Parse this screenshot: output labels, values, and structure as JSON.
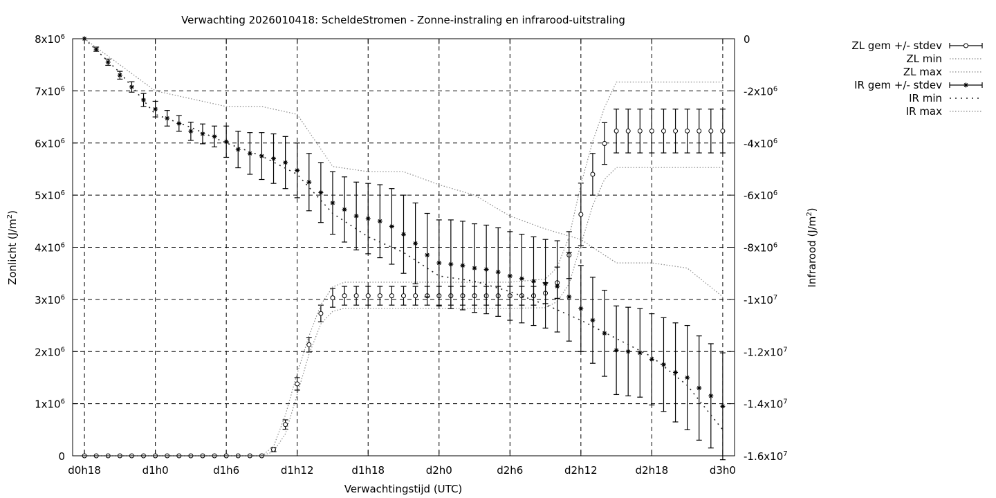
{
  "chart_data": {
    "type": "line",
    "title": "Verwachting 2026010418: ScheldeStromen - Zonne-instraling en infrarood-uitstraling",
    "xlabel": "Verwachtingstijd (UTC)",
    "ylabel_left_base": "Zonlicht (J/m",
    "ylabel_right_base": "Infrarood (J/m",
    "unit_sup": "2",
    "unit_close": ")",
    "x_range_hours": [
      -1,
      55
    ],
    "x_ticks": [
      {
        "h": 0,
        "label": "d0h18"
      },
      {
        "h": 6,
        "label": "d1h0"
      },
      {
        "h": 12,
        "label": "d1h6"
      },
      {
        "h": 18,
        "label": "d1h12"
      },
      {
        "h": 24,
        "label": "d1h18"
      },
      {
        "h": 30,
        "label": "d2h0"
      },
      {
        "h": 36,
        "label": "d2h6"
      },
      {
        "h": 42,
        "label": "d2h12"
      },
      {
        "h": 48,
        "label": "d2h18"
      },
      {
        "h": 54,
        "label": "d3h0"
      }
    ],
    "y_left_range": [
      0,
      8000000
    ],
    "y_left_ticks": [
      {
        "v": 0,
        "base": "0",
        "exp": ""
      },
      {
        "v": 1000000,
        "base": "1x10",
        "exp": "6"
      },
      {
        "v": 2000000,
        "base": "2x10",
        "exp": "6"
      },
      {
        "v": 3000000,
        "base": "3x10",
        "exp": "6"
      },
      {
        "v": 4000000,
        "base": "4x10",
        "exp": "6"
      },
      {
        "v": 5000000,
        "base": "5x10",
        "exp": "6"
      },
      {
        "v": 6000000,
        "base": "6x10",
        "exp": "6"
      },
      {
        "v": 7000000,
        "base": "7x10",
        "exp": "6"
      },
      {
        "v": 8000000,
        "base": "8x10",
        "exp": "6"
      }
    ],
    "y_right_range": [
      -16000000,
      0
    ],
    "y_right_ticks": [
      {
        "v": 0,
        "base": "0",
        "exp": ""
      },
      {
        "v": -2000000,
        "base": "-2x10",
        "exp": "6"
      },
      {
        "v": -4000000,
        "base": "-4x10",
        "exp": "6"
      },
      {
        "v": -6000000,
        "base": "-6x10",
        "exp": "6"
      },
      {
        "v": -8000000,
        "base": "-8x10",
        "exp": "6"
      },
      {
        "v": -10000000,
        "base": "-1x10",
        "exp": "7"
      },
      {
        "v": -12000000,
        "base": "-1.2x10",
        "exp": "7"
      },
      {
        "v": -14000000,
        "base": "-1.4x10",
        "exp": "7"
      },
      {
        "v": -16000000,
        "base": "-1.6x10",
        "exp": "7"
      }
    ],
    "grid": true,
    "legend_position": "top-right outside",
    "legend": [
      "ZL gem +/- stdev",
      "ZL min",
      "ZL max",
      "IR gem +/- stdev",
      "IR min",
      "IR max"
    ],
    "series": [
      {
        "name": "ZL gem +/- stdev",
        "axis": "left",
        "marker": "circle",
        "x": [
          0,
          1,
          2,
          3,
          4,
          5,
          6,
          7,
          8,
          9,
          10,
          11,
          12,
          13,
          14,
          15,
          16,
          17,
          18,
          19,
          20,
          21,
          22,
          23,
          24,
          25,
          26,
          27,
          28,
          29,
          30,
          31,
          32,
          33,
          34,
          35,
          36,
          37,
          38,
          39,
          40,
          41,
          42,
          43,
          44,
          45,
          46,
          47,
          48,
          49,
          50,
          51,
          52,
          53,
          54
        ],
        "mean": [
          0,
          0,
          0,
          0,
          0,
          0,
          0,
          0,
          0,
          0,
          0,
          0,
          0,
          0,
          0,
          0,
          120000,
          600000,
          1380000,
          2130000,
          2730000,
          3030000,
          3070000,
          3070000,
          3070000,
          3070000,
          3070000,
          3070000,
          3070000,
          3070000,
          3070000,
          3070000,
          3070000,
          3070000,
          3070000,
          3070000,
          3070000,
          3070000,
          3070000,
          3120000,
          3320000,
          3850000,
          4630000,
          5400000,
          5990000,
          6230000,
          6230000,
          6230000,
          6230000,
          6230000,
          6230000,
          6230000,
          6230000,
          6230000,
          6230000
        ],
        "stdev": [
          0,
          0,
          0,
          0,
          0,
          0,
          0,
          0,
          0,
          0,
          0,
          0,
          0,
          0,
          0,
          0,
          40000,
          90000,
          120000,
          140000,
          160000,
          180000,
          180000,
          180000,
          180000,
          180000,
          180000,
          180000,
          180000,
          180000,
          180000,
          180000,
          180000,
          180000,
          180000,
          180000,
          180000,
          180000,
          180000,
          200000,
          300000,
          450000,
          600000,
          400000,
          400000,
          420000,
          420000,
          420000,
          420000,
          420000,
          420000,
          420000,
          420000,
          420000,
          420000
        ]
      },
      {
        "name": "ZL min",
        "axis": "left",
        "x": [
          0,
          15,
          16,
          17,
          18,
          19,
          20,
          21,
          22,
          23,
          24,
          30,
          36,
          39,
          40,
          41,
          42,
          43,
          44,
          45,
          54
        ],
        "values": [
          0,
          0,
          80000,
          420000,
          1180000,
          1950000,
          2530000,
          2770000,
          2830000,
          2830000,
          2830000,
          2830000,
          2830000,
          2840000,
          2960000,
          3300000,
          4050000,
          4800000,
          5300000,
          5530000,
          5530000
        ]
      },
      {
        "name": "ZL max",
        "axis": "left",
        "x": [
          0,
          15,
          16,
          17,
          18,
          19,
          20,
          21,
          22,
          23,
          24,
          30,
          36,
          39,
          40,
          41,
          42,
          43,
          44,
          45,
          54
        ],
        "values": [
          0,
          0,
          180000,
          780000,
          1580000,
          2300000,
          2900000,
          3240000,
          3330000,
          3330000,
          3330000,
          3330000,
          3330000,
          3390000,
          3620000,
          4200000,
          5200000,
          6030000,
          6680000,
          7170000,
          7170000
        ]
      },
      {
        "name": "IR gem +/- stdev",
        "axis": "right",
        "marker": "star",
        "x": [
          0,
          1,
          2,
          3,
          4,
          5,
          6,
          7,
          8,
          9,
          10,
          11,
          12,
          13,
          14,
          15,
          16,
          17,
          18,
          19,
          20,
          21,
          22,
          23,
          24,
          25,
          26,
          27,
          28,
          29,
          30,
          31,
          32,
          33,
          34,
          35,
          36,
          37,
          38,
          39,
          40,
          41,
          42,
          43,
          44,
          45,
          46,
          47,
          48,
          49,
          50,
          51,
          52,
          53,
          54
        ],
        "mean": [
          0,
          -400000,
          -900000,
          -1400000,
          -1850000,
          -2350000,
          -2700000,
          -3050000,
          -3250000,
          -3550000,
          -3650000,
          -3750000,
          -3950000,
          -4250000,
          -4400000,
          -4500000,
          -4600000,
          -4750000,
          -5050000,
          -5500000,
          -5900000,
          -6300000,
          -6550000,
          -6800000,
          -6900000,
          -7000000,
          -7200000,
          -7500000,
          -7850000,
          -8300000,
          -8600000,
          -8650000,
          -8700000,
          -8800000,
          -8850000,
          -8950000,
          -9100000,
          -9200000,
          -9300000,
          -9400000,
          -9500000,
          -9900000,
          -10350000,
          -10800000,
          -11300000,
          -11950000,
          -12000000,
          -12050000,
          -12300000,
          -12500000,
          -12800000,
          -13000000,
          -13400000,
          -13700000,
          -14100000
        ],
        "stdev": [
          0,
          80000,
          120000,
          150000,
          200000,
          250000,
          300000,
          300000,
          300000,
          350000,
          380000,
          400000,
          600000,
          700000,
          800000,
          900000,
          950000,
          1000000,
          1050000,
          1100000,
          1150000,
          1200000,
          1250000,
          1300000,
          1350000,
          1400000,
          1450000,
          1500000,
          1550000,
          1600000,
          1650000,
          1700000,
          1700000,
          1700000,
          1700000,
          1700000,
          1700000,
          1700000,
          1700000,
          1700000,
          1750000,
          1700000,
          1650000,
          1650000,
          1650000,
          1700000,
          1700000,
          1700000,
          1750000,
          1800000,
          1900000,
          2000000,
          2000000,
          2000000,
          2050000
        ]
      },
      {
        "name": "IR min",
        "axis": "right",
        "x": [
          0,
          3,
          6,
          9,
          12,
          15,
          18,
          21,
          24,
          27,
          30,
          33,
          36,
          39,
          42,
          45,
          48,
          51,
          54
        ],
        "values": [
          0,
          -1300000,
          -2900000,
          -3400000,
          -4000000,
          -4500000,
          -5200000,
          -6700000,
          -7600000,
          -8200000,
          -9100000,
          -9300000,
          -9700000,
          -10200000,
          -10800000,
          -11500000,
          -12200000,
          -13300000,
          -15000000
        ]
      },
      {
        "name": "IR max",
        "axis": "right",
        "x": [
          0,
          3,
          6,
          9,
          12,
          15,
          18,
          21,
          24,
          27,
          30,
          33,
          36,
          39,
          42,
          45,
          48,
          51,
          54
        ],
        "values": [
          0,
          -1000000,
          -2000000,
          -2300000,
          -2600000,
          -2600000,
          -2900000,
          -4900000,
          -5100000,
          -5100000,
          -5600000,
          -6000000,
          -6800000,
          -7300000,
          -7700000,
          -8600000,
          -8600000,
          -8800000,
          -9900000
        ]
      }
    ]
  }
}
